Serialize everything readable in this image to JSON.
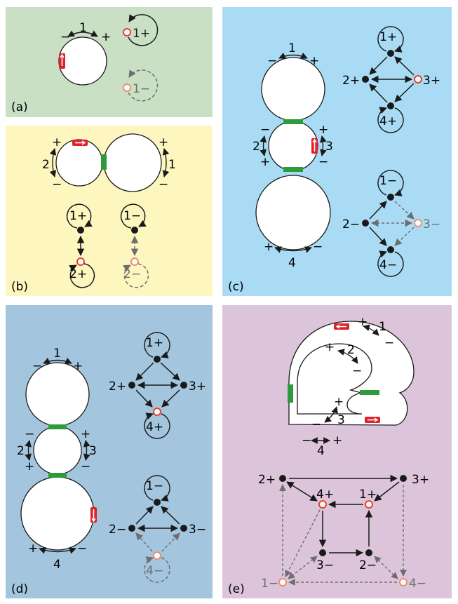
{
  "colors": {
    "panel_a": "#c9e0c5",
    "panel_b": "#fdf6be",
    "panel_c": "#a9dcf4",
    "panel_d": "#a3c6de",
    "panel_e": "#dcc5da",
    "ink": "#1a1a1a",
    "gray": "#6e6e6e",
    "node_open": "#e8402a",
    "node_open_faint": "#e89070",
    "connector": "#2f9a3a",
    "marker": "#e0202a"
  },
  "panel_labels": {
    "a": "(a)",
    "b": "(b)",
    "c": "(c)",
    "d": "(d)",
    "e": "(e)"
  },
  "a": {
    "arc": "1",
    "minus": "−",
    "plus": "+",
    "n1": "1+",
    "n2": "1−"
  },
  "b": {
    "arc1": "1",
    "arc2": "2",
    "plus": "+",
    "minus": "−",
    "n1p": "1+",
    "n2p": "2+",
    "n1m": "1−",
    "n2m": "2−"
  },
  "c": {
    "arc1": "1",
    "arc2": "2",
    "arc3": "3",
    "arc4": "4",
    "plus": "+",
    "minus": "−",
    "n1p": "1+",
    "n2p": "2+",
    "n3p": "3+",
    "n4p": "4+",
    "n1m": "1−",
    "n2m": "2−",
    "n3m": "3−",
    "n4m": "4−"
  },
  "d": {
    "arc1": "1",
    "arc2": "2",
    "arc3": "3",
    "arc4": "4",
    "plus": "+",
    "minus": "−",
    "n1p": "1+",
    "n2p": "2+",
    "n3p": "3+",
    "n4p": "4+",
    "n1m": "1−",
    "n2m": "2−",
    "n3m": "3−",
    "n4m": "4−"
  },
  "e": {
    "arc1": "1",
    "arc2": "2",
    "arc3": "3",
    "arc4": "4",
    "plus": "+",
    "minus": "−",
    "n2p": "2+",
    "n3p": "3+",
    "n4p": "4+",
    "n1p": "1+",
    "n3m": "3−",
    "n2m": "2−",
    "n1m": "1−",
    "n4m": "4−"
  }
}
